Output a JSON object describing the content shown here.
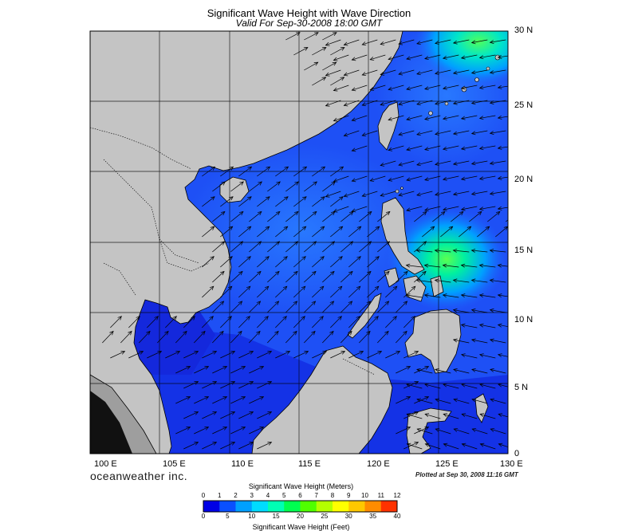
{
  "title": "Significant Wave Height with Wave Direction",
  "subtitle": "Valid For Sep-30-2008 18:00 GMT",
  "lon_labels": [
    "100 E",
    "105 E",
    "110 E",
    "115 E",
    "120 E",
    "125 E",
    "130 E"
  ],
  "lat_labels": [
    "30 N",
    "25 N",
    "20 N",
    "15 N",
    "10 N",
    "5 N",
    "0"
  ],
  "brand": "oceanweather inc.",
  "plotted": "Plotted at Sep 30, 2008 11:16 GMT",
  "colorbar": {
    "title_top": "Significant Wave Height (Meters)",
    "title_bottom": "Significant Wave Height (Feet)",
    "meter_ticks": [
      "0",
      "1",
      "2",
      "3",
      "4",
      "5",
      "6",
      "7",
      "8",
      "9",
      "10",
      "11",
      "12"
    ],
    "feet_ticks": [
      "0",
      "5",
      "10",
      "15",
      "20",
      "25",
      "30",
      "35",
      "40"
    ],
    "colors": [
      "#0000e6",
      "#0a50ff",
      "#00a0ff",
      "#00dcff",
      "#00ffb4",
      "#00ff50",
      "#50ff00",
      "#b4ff00",
      "#ffff00",
      "#ffc800",
      "#ff8c00",
      "#ff3200"
    ]
  },
  "colors": {
    "land": "#c4c4c4",
    "sea_low": "#1e3cf0",
    "sea_mid": "#1e64ff",
    "sea_high": "#00c8ff",
    "sea_peak": "#28ffb4"
  }
}
